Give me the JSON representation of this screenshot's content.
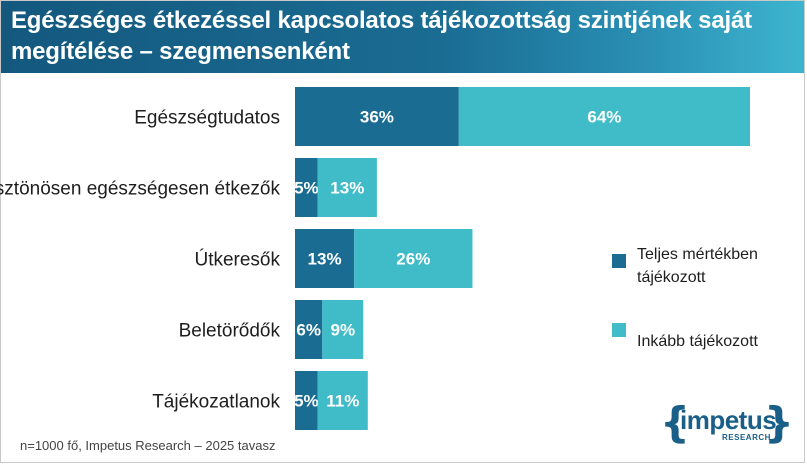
{
  "title": "Egészséges étkezéssel kapcsolatos tájékozottság szintjének saját megítélése – szegmensenként",
  "footnote": "n=1000 fő, Impetus Research – 2025 tavasz",
  "logo": {
    "main": "impetus",
    "sub": "RESEARCH"
  },
  "colors": {
    "dark": "#1a6c93",
    "light": "#3fbcc8",
    "title_start": "#14587e",
    "title_end": "#3db5cf"
  },
  "chart_data": {
    "type": "bar",
    "orientation": "horizontal",
    "stacked": true,
    "categories": [
      "Egészségtudatos",
      "Ösztönösen egészségesen étkezők",
      "Útkeresők",
      "Beletörődők",
      "Tájékozatlanok"
    ],
    "series": [
      {
        "name": "Teljes mértékben tájékozott",
        "values": [
          36,
          5,
          13,
          6,
          5
        ],
        "labels": [
          "36%",
          "5%",
          "13%",
          "6%",
          "5%"
        ],
        "color": "#1a6c93"
      },
      {
        "name": "Inkább tájékozott",
        "values": [
          64,
          13,
          26,
          9,
          11
        ],
        "labels": [
          "64%",
          "13%",
          "26%",
          "9%",
          "11%"
        ],
        "color": "#3fbcc8"
      }
    ],
    "xlim": [
      0,
      100
    ],
    "grid": false,
    "legend_position": "right"
  }
}
